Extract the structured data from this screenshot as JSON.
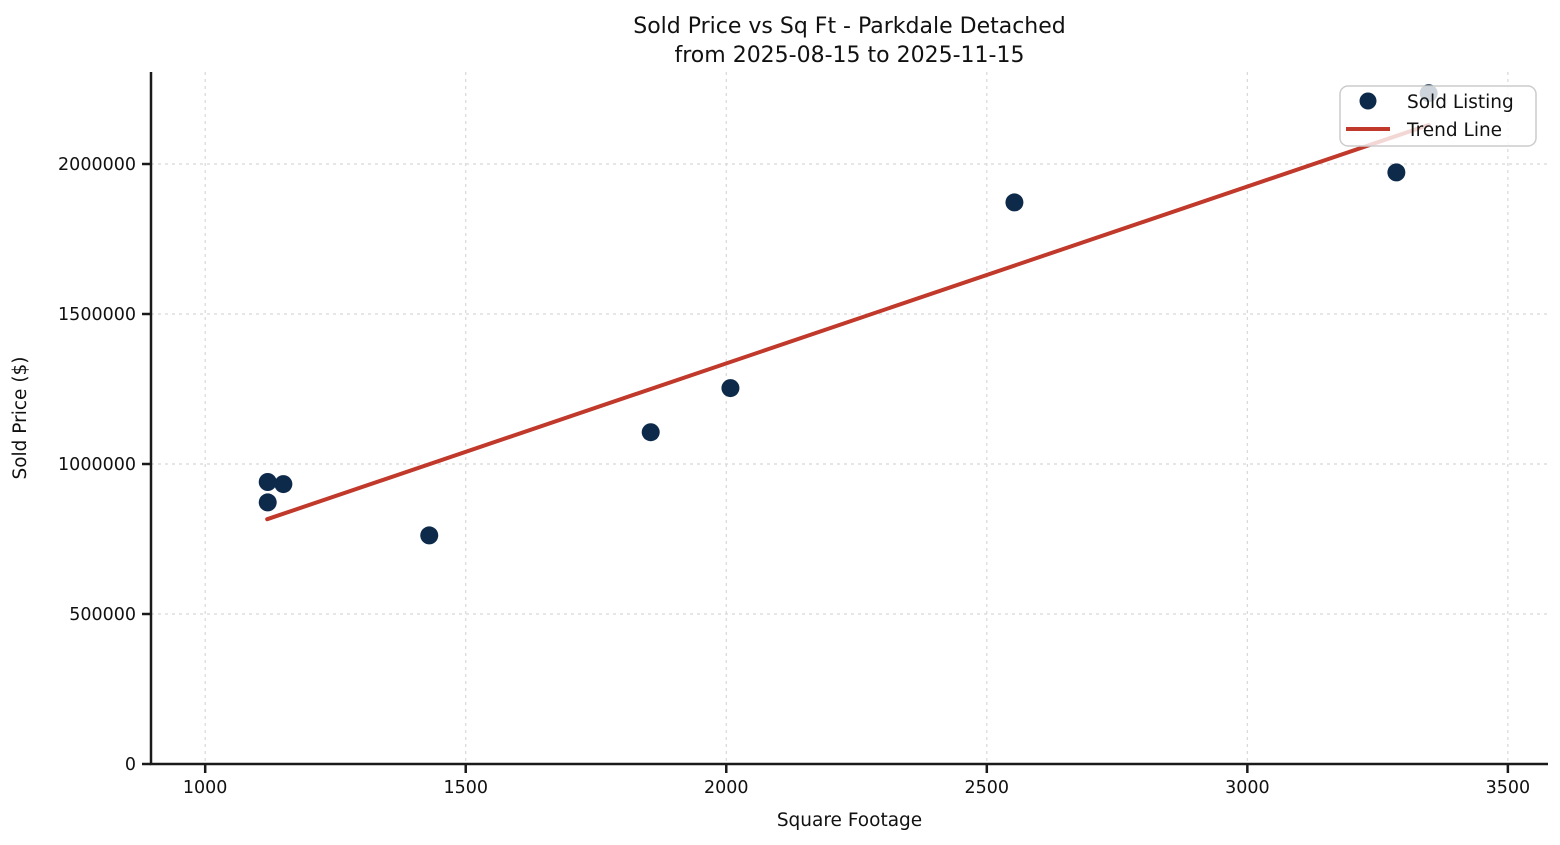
{
  "chart_data": {
    "type": "scatter",
    "title_line1": "Sold Price vs Sq Ft - Parkdale Detached",
    "title_line2": "from 2025-08-15 to 2025-11-15",
    "xlabel": "Square Footage",
    "ylabel": "Sold Price ($)",
    "xlim": [
      896,
      3577
    ],
    "ylim": [
      0,
      2306667
    ],
    "x_ticks": [
      1000,
      1500,
      2000,
      2500,
      3000,
      3500
    ],
    "y_ticks": [
      0,
      500000,
      1000000,
      1500000,
      2000000
    ],
    "grid": true,
    "legend_position": "top-right",
    "colors": {
      "point": "#0e2a4a",
      "trend": "#c0392b",
      "grid": "#d8d8d8",
      "axis": "#1a1a1a",
      "legend_border": "#cccccc",
      "legend_bg_alpha": 0.8
    },
    "series": [
      {
        "name": "Sold Listing",
        "kind": "scatter",
        "points": [
          {
            "sqft": 1120,
            "price": 940000
          },
          {
            "sqft": 1150,
            "price": 933000
          },
          {
            "sqft": 1120,
            "price": 872000
          },
          {
            "sqft": 1430,
            "price": 762000
          },
          {
            "sqft": 1855,
            "price": 1106000
          },
          {
            "sqft": 2008,
            "price": 1253000
          },
          {
            "sqft": 2553,
            "price": 1872000
          },
          {
            "sqft": 3286,
            "price": 1972000
          },
          {
            "sqft": 3348,
            "price": 2236000
          }
        ]
      },
      {
        "name": "Trend Line",
        "kind": "line",
        "x": [
          1119,
          3348
        ],
        "y": [
          816000,
          2130000
        ]
      }
    ],
    "legend_items": [
      "Sold Listing",
      "Trend Line"
    ]
  }
}
